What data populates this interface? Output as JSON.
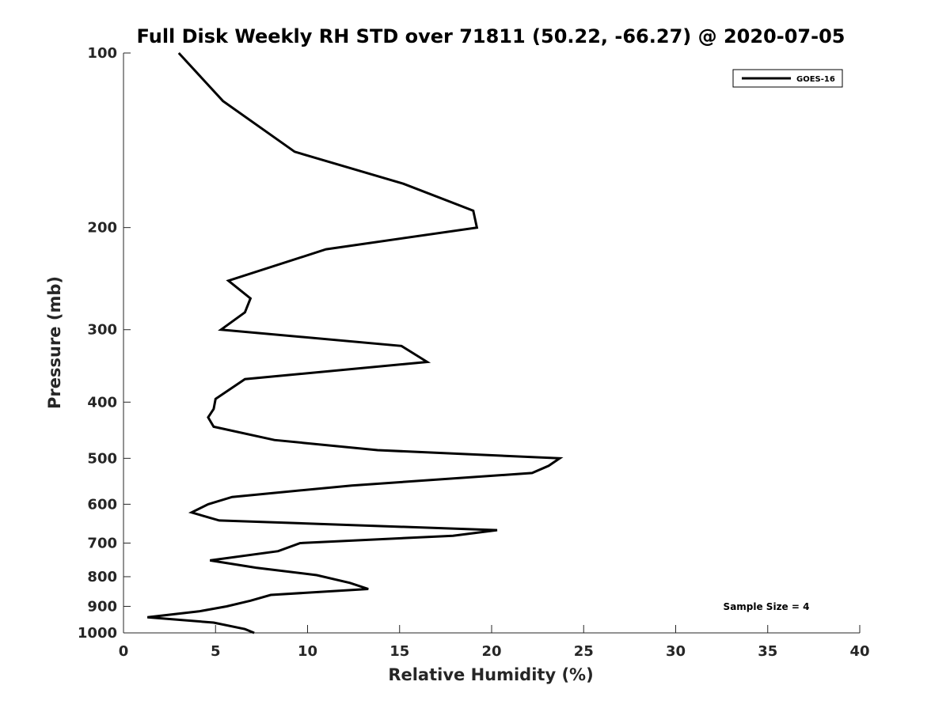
{
  "chart_data": {
    "type": "line",
    "title": "Full Disk Weekly RH STD over 71811 (50.22, -66.27) @ 2020-07-05",
    "xlabel": "Relative Humidity (%)",
    "ylabel": "Pressure (mb)",
    "xlim": [
      0,
      40
    ],
    "ylim": [
      100,
      1000
    ],
    "yscale": "log",
    "y_reversed": true,
    "grid": false,
    "legend_position": "top-right",
    "x_ticks": [
      0,
      5,
      10,
      15,
      20,
      25,
      30,
      35,
      40
    ],
    "y_ticks": [
      100,
      200,
      300,
      400,
      500,
      600,
      700,
      800,
      900,
      1000
    ],
    "series": [
      {
        "name": "GOES-16",
        "color": "#000000",
        "x": [
          3.0,
          5.4,
          9.3,
          15.2,
          19.0,
          19.2,
          11.0,
          5.7,
          6.9,
          6.6,
          5.3,
          15.1,
          16.5,
          6.6,
          5.0,
          4.9,
          4.6,
          4.9,
          8.2,
          13.8,
          23.7,
          23.1,
          22.2,
          12.4,
          5.9,
          4.6,
          3.7,
          5.2,
          20.3,
          17.9,
          9.6,
          8.4,
          4.7,
          7.2,
          10.5,
          12.3,
          13.3,
          8.0,
          6.9,
          5.6,
          4.1,
          1.3,
          4.9,
          6.6,
          7.1
        ],
        "y": [
          100,
          121,
          148,
          168,
          187,
          200,
          218,
          247,
          265,
          280,
          300,
          320,
          341,
          365,
          395,
          411,
          425,
          441,
          465,
          484,
          500,
          515,
          530,
          557,
          583,
          600,
          620,
          640,
          665,
          680,
          700,
          723,
          750,
          772,
          795,
          820,
          840,
          860,
          880,
          900,
          918,
          940,
          960,
          985,
          1000
        ]
      }
    ],
    "annotations": [
      "Sample Size = 4"
    ]
  }
}
